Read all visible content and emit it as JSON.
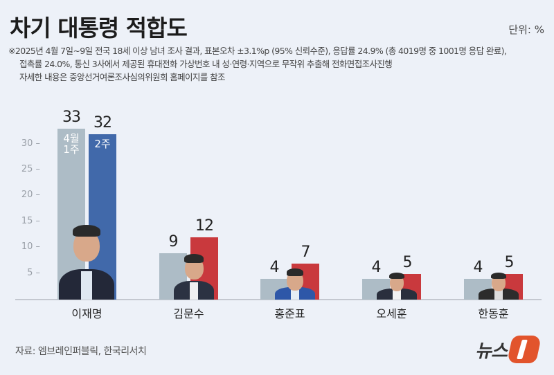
{
  "header": {
    "title": "차기 대통령 적합도",
    "unit": "단위: %"
  },
  "notes": [
    "※2025년 4월 7일~9일 전국 18세 이상 남녀 조사 결과, 표본오차 ±3.1%p (95% 신뢰수준), 응답률 24.9% (총 4019명 중 1001명 응답 완료),",
    "접촉률 24.0%, 통신 3사에서 제공된 휴대전화 가상번호 내 성·연령·지역으로 무작위 추출해 전화면접조사진행",
    "자세한 내용은 중앙선거여론조사심의위원회 홈페이지를 참조"
  ],
  "legend_in_bar": {
    "prev": "4월\n1주",
    "prev_line1": "4월",
    "prev_line2": "1주",
    "curr": "2주"
  },
  "colors": {
    "prev_week": "#adbcc6",
    "lee_current": "#4169aa",
    "others_current": "#c9393d",
    "background": "#edf1f8",
    "logo_accent": "#e2542c"
  },
  "footer": {
    "source": "자료: 엠브레인퍼블릭, 한국리서치",
    "logo_text": "뉴스",
    "logo_mark": "1"
  },
  "chart_data": {
    "type": "bar",
    "title": "차기 대통령 적합도",
    "xlabel": "",
    "ylabel": "단위: %",
    "ylim": [
      0,
      33
    ],
    "yticks": [
      5,
      10,
      15,
      20,
      25,
      30
    ],
    "grid": false,
    "legend_position": "inside first bar group",
    "categories": [
      "이재명",
      "김문수",
      "홍준표",
      "오세훈",
      "한동훈"
    ],
    "series": [
      {
        "name": "4월 1주",
        "values": [
          33,
          9,
          4,
          4,
          4
        ]
      },
      {
        "name": "4월 2주",
        "values": [
          32,
          12,
          7,
          5,
          5
        ]
      }
    ]
  }
}
